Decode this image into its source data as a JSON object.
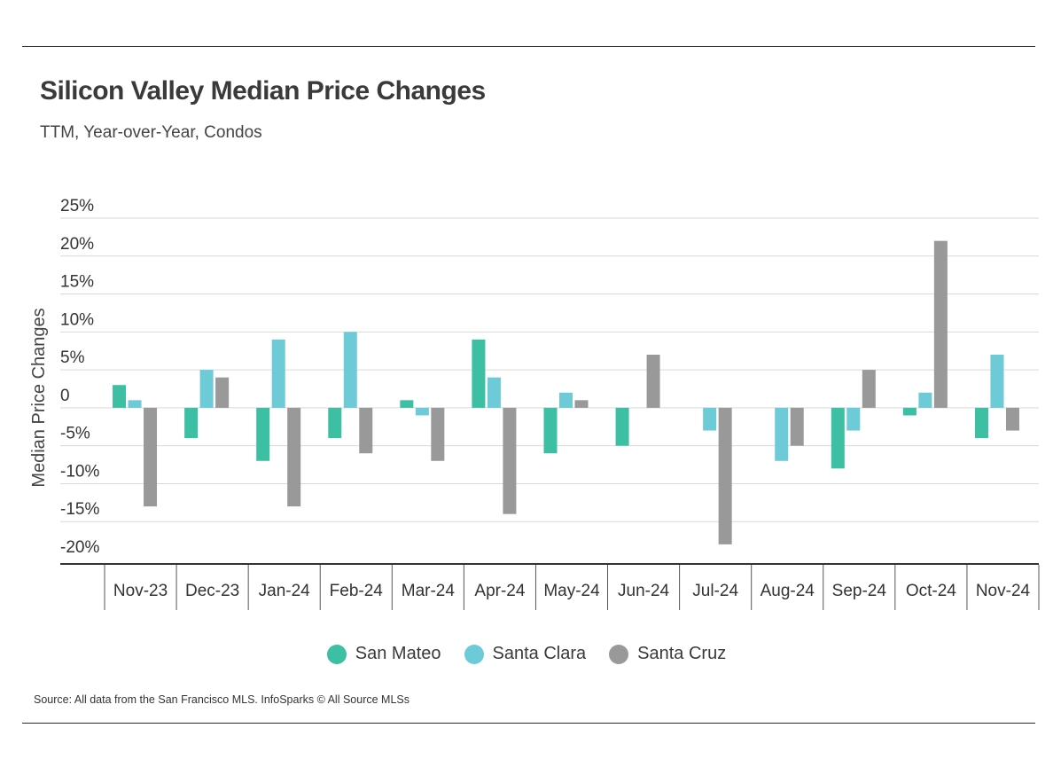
{
  "title": "Silicon Valley Median Price Changes",
  "subtitle": "TTM, Year-over-Year, Condos",
  "source": "Source:  All data from the San Francisco MLS. InfoSparks © All Source MLSs",
  "chart_data": {
    "type": "bar",
    "title": "Silicon Valley Median Price Changes",
    "subtitle": "TTM, Year-over-Year, Condos",
    "xlabel": "",
    "ylabel": "Median Price Changes",
    "ylim": [
      -20,
      25
    ],
    "yticks": [
      25,
      20,
      15,
      10,
      5,
      0,
      -5,
      -10,
      -15,
      -20
    ],
    "ytick_labels": [
      "25%",
      "20%",
      "15%",
      "10%",
      "5%",
      "0",
      "-5%",
      "-10%",
      "-15%",
      "-20%"
    ],
    "grid": true,
    "legend_position": "bottom-center",
    "categories": [
      "Nov-23",
      "Dec-23",
      "Jan-24",
      "Feb-24",
      "Mar-24",
      "Apr-24",
      "May-24",
      "Jun-24",
      "Jul-24",
      "Aug-24",
      "Sep-24",
      "Oct-24",
      "Nov-24"
    ],
    "series": [
      {
        "name": "San Mateo",
        "color": "#3dbfa3",
        "values": [
          3,
          -4,
          -7,
          -4,
          1,
          9,
          -6,
          -5,
          0,
          0,
          -8,
          -1,
          -4
        ]
      },
      {
        "name": "Santa Clara",
        "color": "#6ccbd6",
        "values": [
          1,
          5,
          9,
          10,
          -1,
          4,
          2,
          0,
          -3,
          -7,
          -3,
          2,
          7
        ]
      },
      {
        "name": "Santa Cruz",
        "color": "#999999",
        "values": [
          -13,
          4,
          -13,
          -6,
          -7,
          -14,
          1,
          7,
          -18,
          -5,
          5,
          22,
          -3
        ]
      }
    ]
  }
}
